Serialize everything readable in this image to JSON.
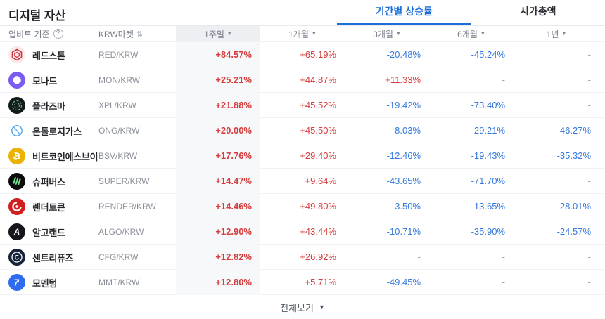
{
  "page": {
    "title": "디지털 자산"
  },
  "tabs": [
    {
      "label": "기간별 상승률",
      "active": true
    },
    {
      "label": "시가총액",
      "active": false
    }
  ],
  "palette": {
    "rise": "#d63c3c",
    "fall": "#3579de",
    "accent": "#1b6ed8",
    "week_band": "#f7f8fa",
    "week_band_header": "#edeff3"
  },
  "table": {
    "base_label": "업비트 기준",
    "help_glyph": "?",
    "market_label": "KRW마켓",
    "sort_glyph": "⇅",
    "caret_glyph": "▼",
    "period_headers": [
      "1주일",
      "1개월",
      "3개월",
      "6개월",
      "1년"
    ],
    "rows": [
      {
        "name": "레드스톤",
        "pair": "RED/KRW",
        "icon": {
          "name": "redstone-icon",
          "bg": "#fbe9e9",
          "fg": "#c9353f"
        },
        "values": [
          "+84.57%",
          "+65.19%",
          "-20.48%",
          "-45.24%",
          "-"
        ]
      },
      {
        "name": "모나드",
        "pair": "MON/KRW",
        "icon": {
          "name": "monad-icon",
          "bg": "#7b5cf0",
          "fg": "#ffffff"
        },
        "values": [
          "+25.21%",
          "+44.87%",
          "+11.33%",
          "-",
          "-"
        ]
      },
      {
        "name": "플라즈마",
        "pair": "XPL/KRW",
        "icon": {
          "name": "plasma-icon",
          "bg": "#101c16",
          "fg": "#86a394"
        },
        "values": [
          "+21.88%",
          "+45.52%",
          "-19.42%",
          "-73.40%",
          "-"
        ]
      },
      {
        "name": "온톨로지가스",
        "pair": "ONG/KRW",
        "icon": {
          "name": "ontologygas-icon",
          "bg": "#ffffff",
          "fg": "#5aa8ec"
        },
        "values": [
          "+20.00%",
          "+45.50%",
          "-8.03%",
          "-29.21%",
          "-46.27%"
        ]
      },
      {
        "name": "비트코인에스브이",
        "pair": "BSV/KRW",
        "icon": {
          "name": "bitcoinsv-icon",
          "bg": "#eab301",
          "fg": "#ffffff"
        },
        "values": [
          "+17.76%",
          "+29.40%",
          "-12.46%",
          "-19.43%",
          "-35.32%"
        ]
      },
      {
        "name": "슈퍼버스",
        "pair": "SUPER/KRW",
        "icon": {
          "name": "superverse-icon",
          "bg": "#0c0c0c",
          "fg": "#6fe08a"
        },
        "values": [
          "+14.47%",
          "+9.64%",
          "-43.65%",
          "-71.70%",
          "-"
        ]
      },
      {
        "name": "렌더토큰",
        "pair": "RENDER/KRW",
        "icon": {
          "name": "render-icon",
          "bg": "#d01f1f",
          "fg": "#ffffff"
        },
        "values": [
          "+14.46%",
          "+49.80%",
          "-3.50%",
          "-13.65%",
          "-28.01%"
        ]
      },
      {
        "name": "알고랜드",
        "pair": "ALGO/KRW",
        "icon": {
          "name": "algorand-icon",
          "bg": "#15171a",
          "fg": "#ffffff"
        },
        "values": [
          "+12.90%",
          "+43.44%",
          "-10.71%",
          "-35.90%",
          "-24.57%"
        ]
      },
      {
        "name": "센트리퓨즈",
        "pair": "CFG/KRW",
        "icon": {
          "name": "centrifuge-icon",
          "bg": "#16233a",
          "fg": "#ffffff"
        },
        "values": [
          "+12.82%",
          "+26.92%",
          "-",
          "-",
          "-"
        ]
      },
      {
        "name": "모멘텀",
        "pair": "MMT/KRW",
        "icon": {
          "name": "momentum-icon",
          "bg": "#2f6bee",
          "fg": "#ffffff"
        },
        "values": [
          "+12.80%",
          "+5.71%",
          "-49.45%",
          "-",
          "-"
        ]
      }
    ]
  },
  "footer": {
    "label": "전체보기",
    "caret_glyph": "▼"
  }
}
